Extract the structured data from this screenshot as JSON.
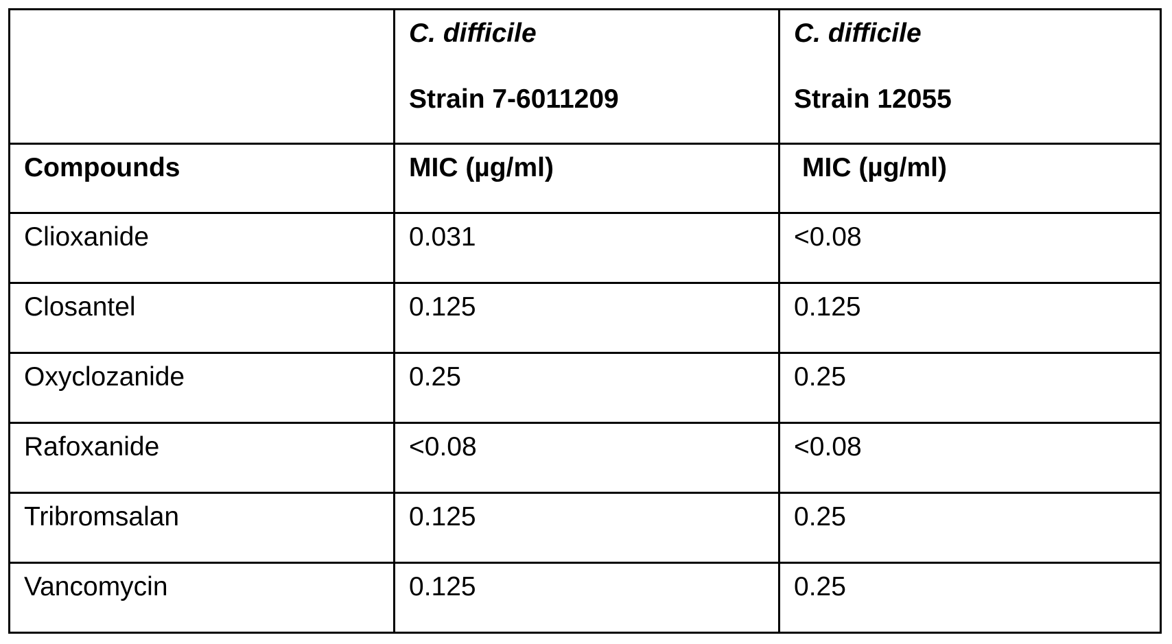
{
  "table": {
    "header_row1": {
      "col1": "",
      "col2_species": "C. difficile",
      "col2_strain": "Strain 7-6011209",
      "col3_species": "C. difficile",
      "col3_strain": "Strain 12055"
    },
    "header_row2": {
      "col1": "Compounds",
      "col2": "MIC (µg/ml)",
      "col3": "MIC (µg/ml)"
    },
    "rows": [
      {
        "compound": "Clioxanide",
        "strain1": "0.031",
        "strain2": "<0.08"
      },
      {
        "compound": "Closantel",
        "strain1": "0.125",
        "strain2": "0.125"
      },
      {
        "compound": "Oxyclozanide",
        "strain1": "0.25",
        "strain2": "0.25"
      },
      {
        "compound": "Rafoxanide",
        "strain1": "<0.08",
        "strain2": "<0.08"
      },
      {
        "compound": "Tribromsalan",
        "strain1": "0.125",
        "strain2": "0.25"
      },
      {
        "compound": "Vancomycin",
        "strain1": "0.125",
        "strain2": "0.25"
      }
    ]
  }
}
